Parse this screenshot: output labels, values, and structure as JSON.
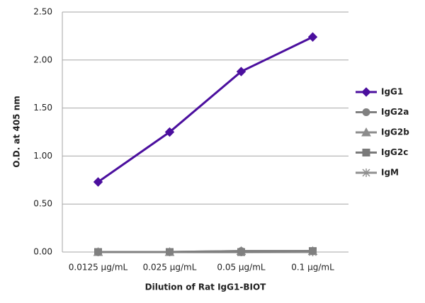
{
  "chart_data": {
    "type": "line",
    "x_label": "Dilution of Rat IgG1-BIOT",
    "y_label": "O.D. at 405 nm",
    "categories": [
      "0.0125 µg/mL",
      "0.025 µg/mL",
      "0.05 µg/mL",
      "0.1 µg/mL"
    ],
    "series": [
      {
        "name": "IgG1",
        "color": "#4b0f9e",
        "marker": "diamond",
        "values": [
          0.73,
          1.25,
          1.88,
          2.24
        ]
      },
      {
        "name": "IgG2a",
        "color": "#808080",
        "marker": "circle",
        "values": [
          0.0,
          0.0,
          0.01,
          0.01
        ]
      },
      {
        "name": "IgG2b",
        "color": "#8c8c8c",
        "marker": "triangle",
        "values": [
          0.0,
          0.0,
          0.01,
          0.01
        ]
      },
      {
        "name": "IgG2c",
        "color": "#7a7a7a",
        "marker": "square",
        "values": [
          0.0,
          0.0,
          0.0,
          0.01
        ]
      },
      {
        "name": "IgM",
        "color": "#909090",
        "marker": "star",
        "values": [
          0.0,
          0.0,
          0.0,
          0.0
        ]
      }
    ],
    "ylim": [
      0,
      2.5
    ],
    "yticks": [
      {
        "value": 0,
        "label": "0.00"
      },
      {
        "value": 0.5,
        "label": "0.50"
      },
      {
        "value": 1,
        "label": "1.00"
      },
      {
        "value": 1.5,
        "label": "1.50"
      },
      {
        "value": 2,
        "label": "2.00"
      },
      {
        "value": 2.5,
        "label": "2.50"
      }
    ],
    "grid": true
  }
}
